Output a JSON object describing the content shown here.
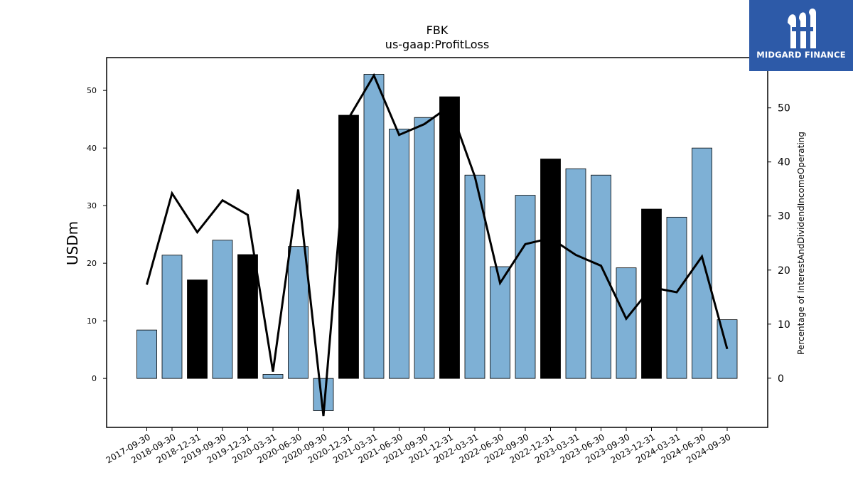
{
  "brand": {
    "name": "MIDGARD FINANCE",
    "background": "#2d5aa8"
  },
  "chart_data": {
    "type": "bar",
    "title": "FBK",
    "subtitle": "us-gaap:ProfitLoss",
    "ylabel": "USDm",
    "y2label": "Percentage of InterestAndDividendIncomeOperating",
    "ylim": [
      -8.5,
      55.7
    ],
    "y2lim": [
      -9.1,
      59.3
    ],
    "yticks": [
      0,
      10,
      20,
      30,
      40,
      50
    ],
    "y2ticks": [
      0,
      10,
      20,
      30,
      40,
      50
    ],
    "categories": [
      "2017-09-30",
      "2018-09-30",
      "2018-12-31",
      "2019-09-30",
      "2019-12-31",
      "2020-03-31",
      "2020-06-30",
      "2020-09-30",
      "2020-12-31",
      "2021-03-31",
      "2021-06-30",
      "2021-09-30",
      "2021-12-31",
      "2022-03-31",
      "2022-06-30",
      "2022-09-30",
      "2022-12-31",
      "2023-03-31",
      "2023-06-30",
      "2023-09-30",
      "2023-12-31",
      "2024-03-31",
      "2024-06-30",
      "2024-09-30"
    ],
    "series": [
      {
        "type": "bar",
        "values": [
          8.4,
          21.4,
          17.1,
          24.0,
          21.5,
          0.7,
          22.9,
          -5.6,
          45.7,
          52.8,
          43.3,
          45.3,
          48.9,
          35.3,
          19.4,
          31.8,
          38.1,
          36.4,
          35.3,
          19.2,
          29.4,
          28.0,
          40.0,
          10.2
        ],
        "highlight": [
          false,
          false,
          true,
          false,
          true,
          false,
          false,
          false,
          true,
          false,
          false,
          false,
          true,
          false,
          false,
          false,
          true,
          false,
          false,
          false,
          true,
          false,
          false,
          false
        ]
      },
      {
        "type": "line",
        "axis": "right",
        "values": [
          17.3,
          34.2,
          27.0,
          32.9,
          30.2,
          1.2,
          34.9,
          -7.0,
          48.1,
          56.0,
          45.0,
          47.0,
          50.3,
          37.3,
          17.6,
          24.8,
          25.9,
          22.8,
          20.8,
          11.0,
          16.8,
          15.9,
          22.5,
          5.4
        ]
      }
    ],
    "colors": {
      "bar": "#7eb0d5",
      "highlight": "#000000",
      "line": "#000000"
    },
    "grid": false,
    "legend": "none"
  }
}
